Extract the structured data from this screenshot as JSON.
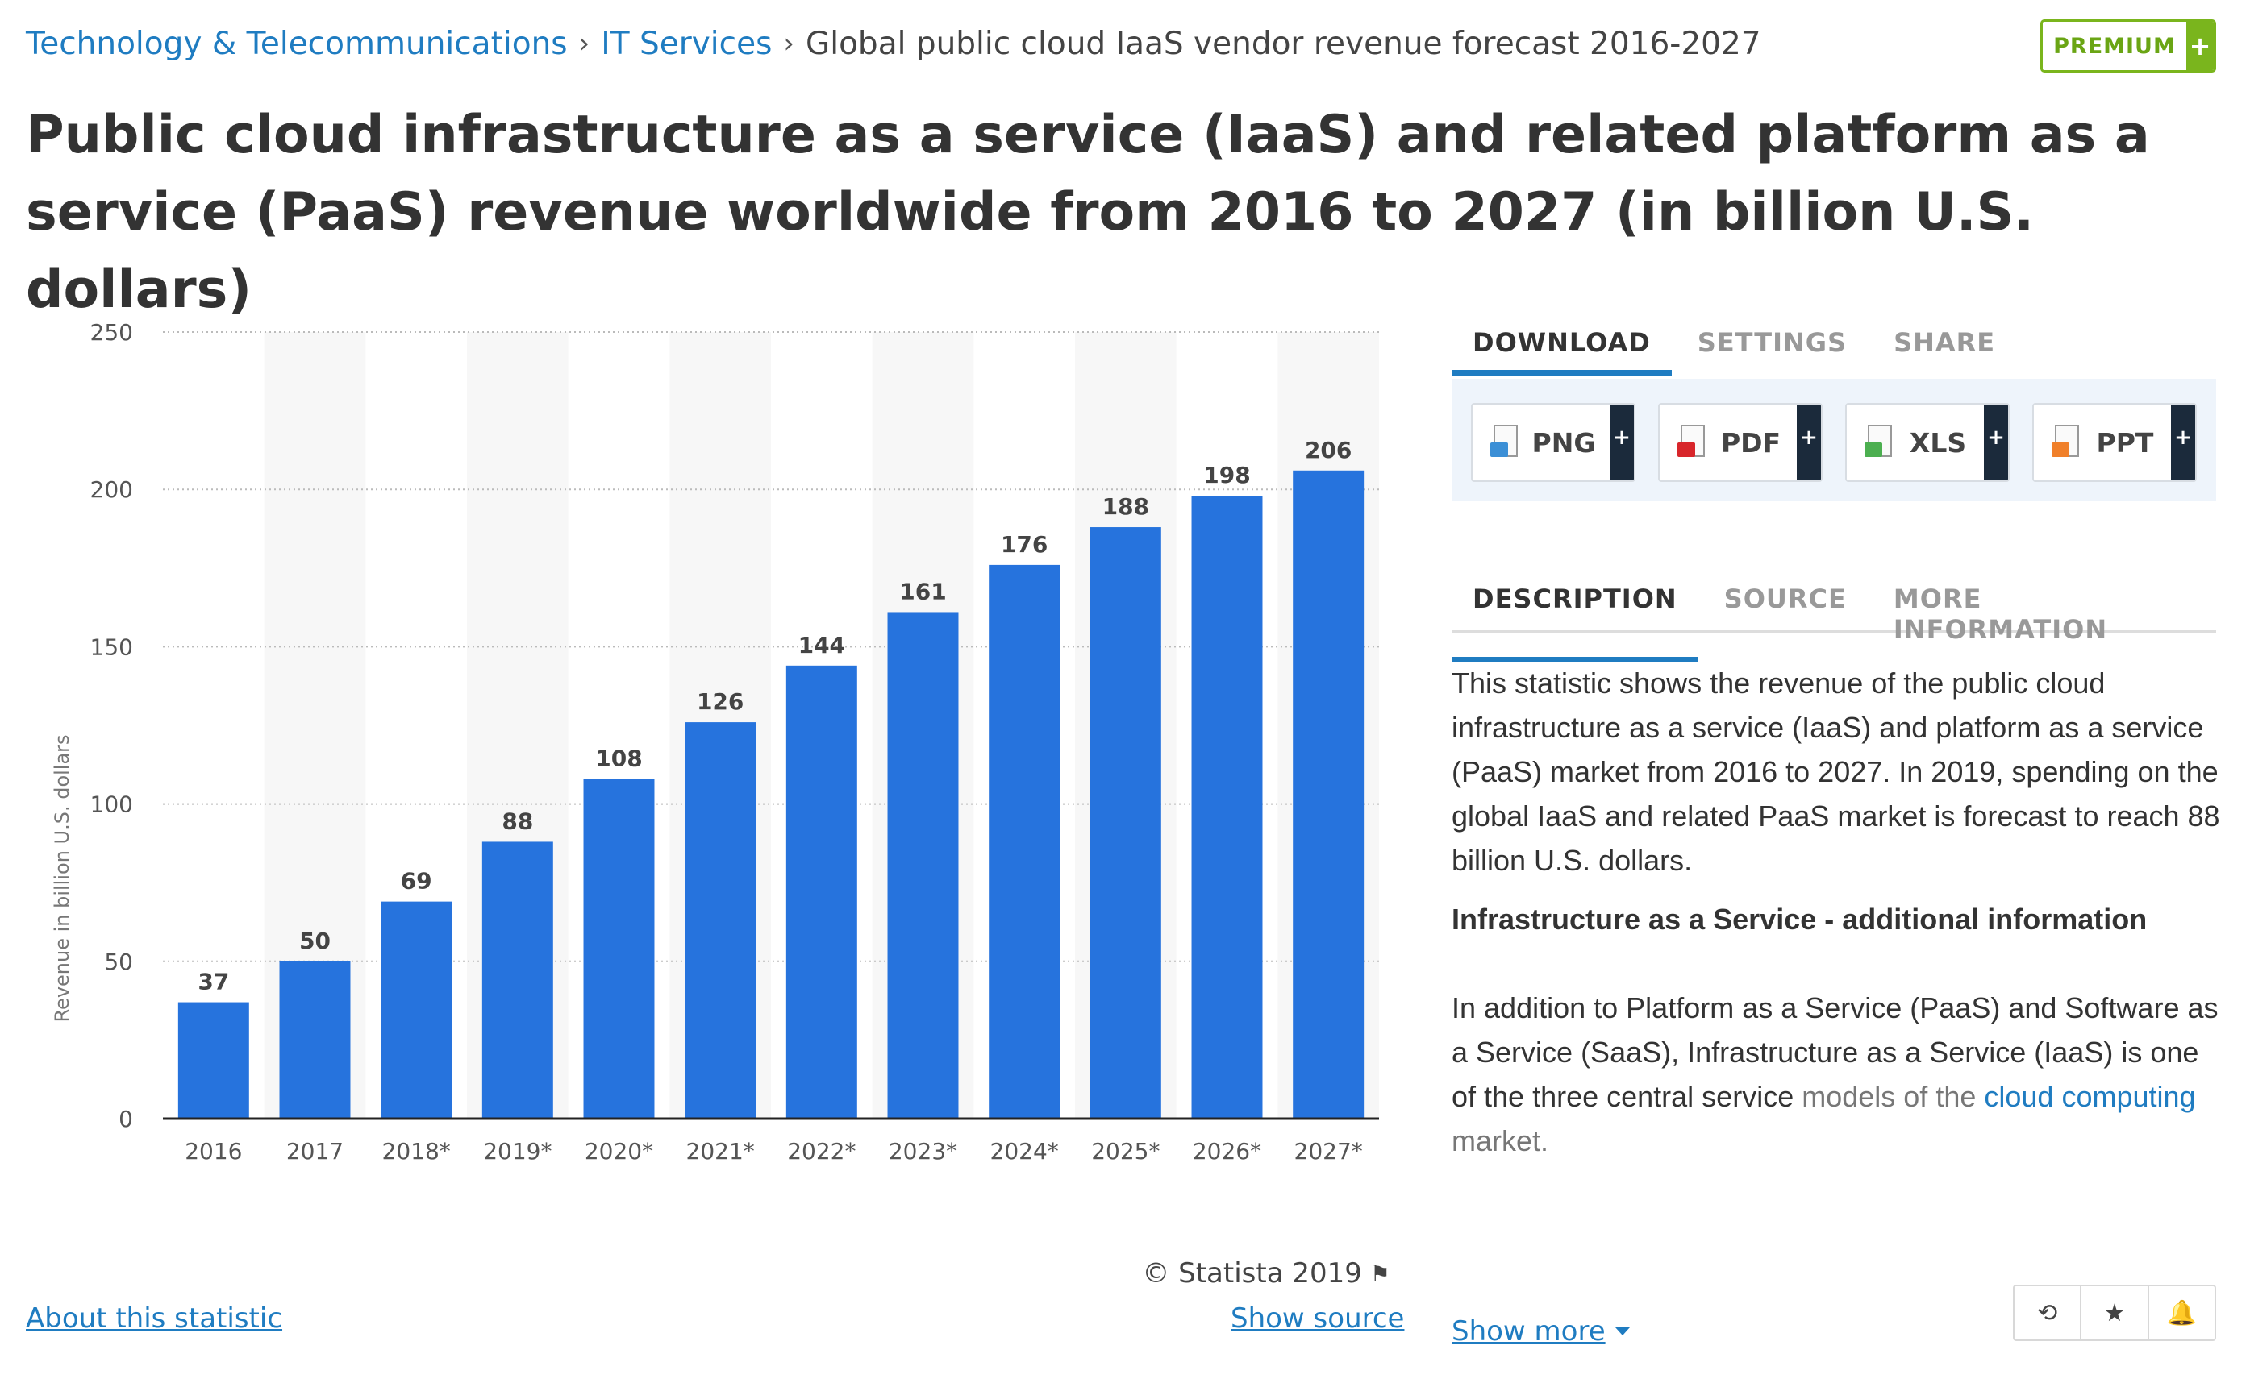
{
  "breadcrumb": {
    "items": [
      "Technology & Telecommunications",
      "IT Services"
    ],
    "current": "Global public cloud IaaS vendor revenue forecast 2016-2027",
    "separator": "›"
  },
  "premium": {
    "label": "PREMIUM",
    "plus": "+"
  },
  "title": "Public cloud infrastructure as a service (IaaS) and related platform as a service (PaaS) revenue worldwide from 2016 to 2027 (in billion U.S. dollars)",
  "chart_data": {
    "type": "bar",
    "categories": [
      "2016",
      "2017",
      "2018*",
      "2019*",
      "2020*",
      "2021*",
      "2022*",
      "2023*",
      "2024*",
      "2025*",
      "2026*",
      "2027*"
    ],
    "values": [
      37,
      50,
      69,
      88,
      108,
      126,
      144,
      161,
      176,
      188,
      198,
      206
    ],
    "ylabel": "Revenue in billion U.S. dollars",
    "xlabel": "",
    "ylim": [
      0,
      250
    ],
    "yticks": [
      0,
      50,
      100,
      150,
      200,
      250
    ],
    "grid": true,
    "bar_color": "#2673dd",
    "alt_column_shading": true
  },
  "copyright": "© Statista 2019",
  "about_link": "About this statistic",
  "show_source": "Show source",
  "download_tabs": {
    "download": "DOWNLOAD",
    "settings": "SETTINGS",
    "share": "SHARE"
  },
  "download_buttons": [
    {
      "label": "PNG",
      "icon": "png-file-icon",
      "color": "#3b8fd6"
    },
    {
      "label": "PDF",
      "icon": "pdf-file-icon",
      "color": "#d8262b"
    },
    {
      "label": "XLS",
      "icon": "xls-file-icon",
      "color": "#4caf50"
    },
    {
      "label": "PPT",
      "icon": "ppt-file-icon",
      "color": "#f0802a"
    }
  ],
  "info_tabs": {
    "description": "DESCRIPTION",
    "source": "SOURCE",
    "more": "MORE INFORMATION"
  },
  "description": {
    "para1": "This statistic shows the revenue of the public cloud infrastructure as a service (IaaS) and platform as a service (PaaS) market from 2016 to 2027. In 2019, spending on the global IaaS and related PaaS market is forecast to reach 88 billion U.S. dollars.",
    "subhead": "Infrastructure as a Service - additional information",
    "para2_lead": "In addition to Platform as a Service (PaaS) and Software as a Service (SaaS), Infrastructure as a Service (IaaS) is one of the three central service",
    "para2_tail_before": "models of the",
    "para2_link": "cloud computing",
    "para2_tail_after": "market."
  },
  "show_more": "Show more",
  "actions": {
    "history": "⟲",
    "favorite": "★",
    "alert": "🔔"
  }
}
